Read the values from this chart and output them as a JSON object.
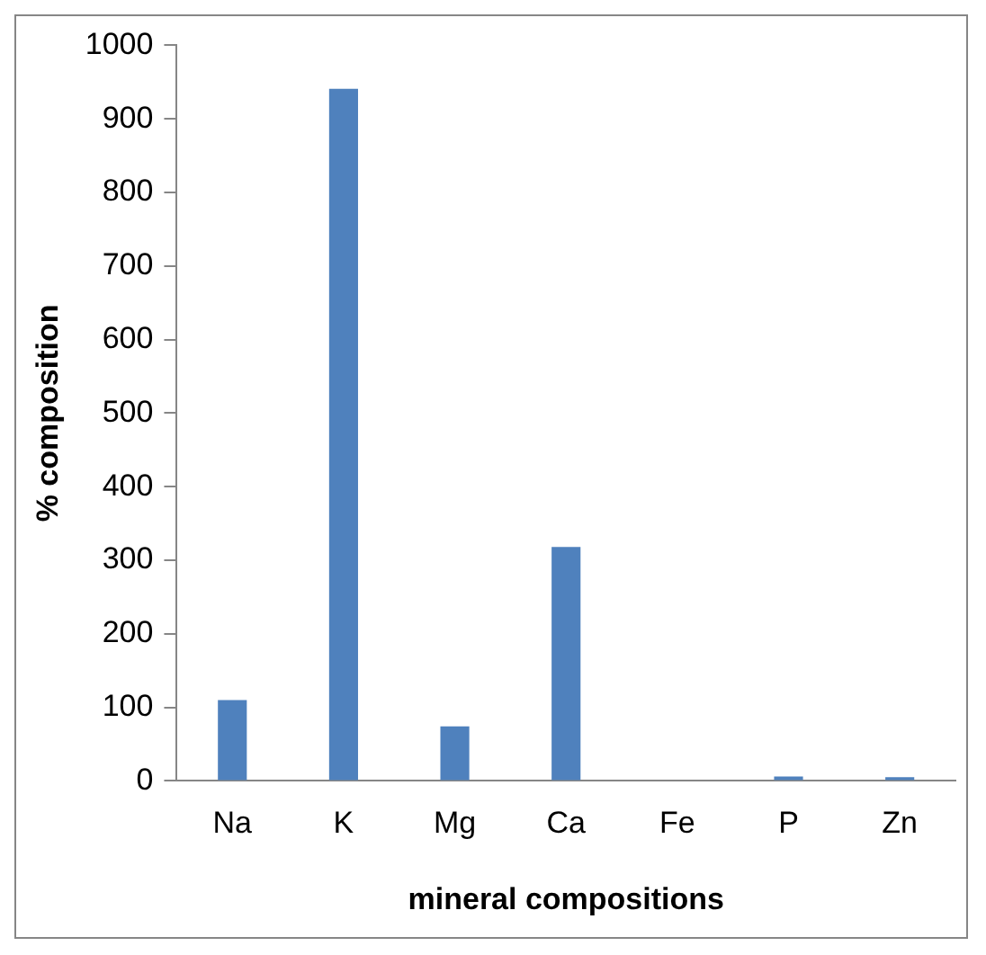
{
  "chart_data": {
    "type": "bar",
    "xlabel": "mineral compositions",
    "ylabel": "% composition",
    "categories": [
      "Na",
      "K",
      "Mg",
      "Ca",
      "Fe",
      "P",
      "Zn"
    ],
    "values": [
      110,
      941,
      74,
      318,
      0,
      6,
      5
    ],
    "color": "#4f81bd",
    "ylim": [
      0,
      1000
    ],
    "yticks": [
      0,
      100,
      200,
      300,
      400,
      500,
      600,
      700,
      800,
      900,
      1000
    ],
    "grid": false,
    "legend": false
  }
}
